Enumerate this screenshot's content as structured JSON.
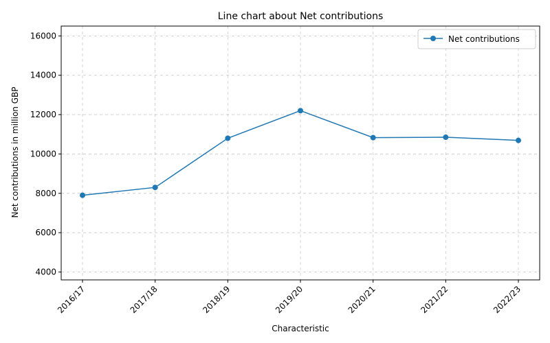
{
  "chart_data": {
    "type": "line",
    "title": "Line chart about Net contributions",
    "xlabel": "Characteristic",
    "ylabel": "Net contributions in million GBP",
    "categories": [
      "2016/17",
      "2017/18",
      "2018/19",
      "2019/20",
      "2020/21",
      "2021/22",
      "2022/23"
    ],
    "series": [
      {
        "name": "Net contributions",
        "values": [
          7900,
          8300,
          10800,
          12200,
          10830,
          10850,
          10690
        ],
        "color": "#1f77b4"
      }
    ],
    "ylim": [
      3600,
      16500
    ],
    "yticks": [
      4000,
      6000,
      8000,
      10000,
      12000,
      14000,
      16000
    ],
    "grid": true,
    "legend_position": "top-right"
  }
}
